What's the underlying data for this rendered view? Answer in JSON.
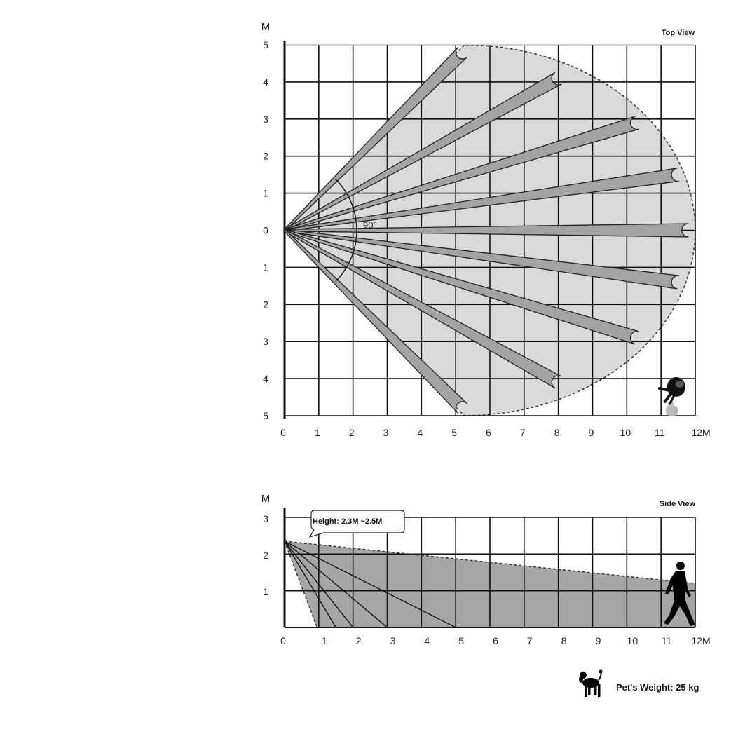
{
  "top_view": {
    "title": "Top View",
    "y_unit": "M",
    "x_last_label": "12M",
    "x_ticks": [
      "0",
      "1",
      "2",
      "3",
      "4",
      "5",
      "6",
      "7",
      "8",
      "9",
      "10",
      "11"
    ],
    "y_ticks": [
      "5",
      "4",
      "3",
      "2",
      "1",
      "0",
      "1",
      "2",
      "3",
      "4",
      "5"
    ],
    "angle_label": "90°",
    "x_range": [
      0,
      12
    ],
    "y_range": [
      -5,
      5
    ],
    "zone_fill": "#d9d9d9",
    "beam_fill": "#a3a3a3",
    "beam_ends_m": [
      [
        5.2,
        4.8
      ],
      [
        8.0,
        4.1
      ],
      [
        10.3,
        2.9
      ],
      [
        11.5,
        1.5
      ],
      [
        11.8,
        0.0
      ],
      [
        11.5,
        -1.4
      ],
      [
        10.3,
        -2.9
      ],
      [
        8.0,
        -4.1
      ],
      [
        5.2,
        -4.8
      ]
    ],
    "pet_position_m": [
      11.3,
      -4.3
    ]
  },
  "side_view": {
    "title": "Side View",
    "y_unit": "M",
    "x_last_label": "12M",
    "x_ticks": [
      "0",
      "1",
      "2",
      "3",
      "4",
      "5",
      "6",
      "7",
      "8",
      "9",
      "10",
      "11"
    ],
    "y_ticks": [
      "3",
      "2",
      "1"
    ],
    "callout": "Height: 2.3M ~2.5M",
    "x_range": [
      0,
      12
    ],
    "y_range": [
      0,
      3
    ],
    "zone_fill": "#a6a6a6",
    "mount_height_m": 2.35,
    "coverage_end_height_m": 1.2,
    "ray_ground_hits_m": [
      0.95,
      1.5,
      2.0,
      3.0,
      5.0
    ],
    "person_position_m": 11.2
  },
  "pet_weight": {
    "label": "Pet's Weight: 25 kg"
  }
}
